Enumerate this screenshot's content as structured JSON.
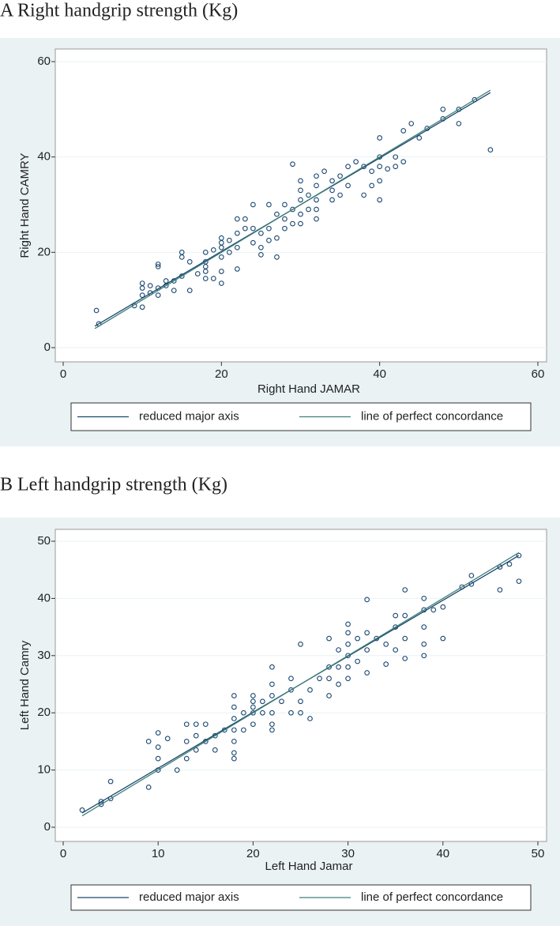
{
  "chart_data": [
    {
      "type": "scatter",
      "title": "A Right handgrip strength (Kg)",
      "xlabel": "Right Hand JAMAR",
      "ylabel": "Right Hand CAMRY",
      "xlim": [
        0,
        60
      ],
      "ylim": [
        0,
        60
      ],
      "xticks": [
        0,
        20,
        40,
        60
      ],
      "yticks": [
        0,
        20,
        40,
        60
      ],
      "grid": true,
      "points": {
        "color": "#1a476f",
        "x": [
          4.2,
          4.5,
          9,
          10,
          10,
          10,
          10,
          11,
          11,
          12,
          12,
          12,
          12,
          13,
          13,
          14,
          14,
          15,
          15,
          15,
          16,
          16,
          17,
          18,
          18,
          18,
          18,
          18,
          19,
          19,
          20,
          20,
          20,
          20,
          20,
          20,
          21,
          21,
          22,
          22,
          22,
          22,
          23,
          23,
          24,
          24,
          24,
          25,
          25,
          25,
          26,
          26,
          26,
          27,
          27,
          27,
          28,
          28,
          28,
          29,
          29,
          29,
          30,
          30,
          30,
          30,
          30,
          31,
          31,
          32,
          32,
          32,
          32,
          32,
          33,
          34,
          34,
          34,
          35,
          35,
          36,
          36,
          37,
          38,
          38,
          39,
          39,
          40,
          40,
          40,
          40,
          40,
          41,
          42,
          42,
          43,
          43,
          44,
          45,
          46,
          48,
          48,
          50,
          50,
          52,
          54
        ],
        "y": [
          7.8,
          5,
          8.8,
          8.5,
          11,
          12.5,
          13.5,
          13,
          11.5,
          11,
          12.5,
          17,
          17.5,
          13,
          14,
          12,
          14,
          15,
          19,
          20,
          18,
          12,
          15.5,
          14.5,
          16,
          17,
          18,
          20,
          20.5,
          14.5,
          13.5,
          16,
          19,
          21,
          22,
          23,
          22.5,
          20,
          16.5,
          21,
          24,
          27,
          25,
          27,
          22,
          25,
          30,
          19.5,
          21,
          24,
          22.5,
          25,
          30,
          19,
          23,
          28,
          25,
          27,
          30,
          26,
          29,
          38.5,
          26,
          28,
          31,
          33,
          35,
          29,
          32,
          27,
          29,
          31,
          34,
          36,
          37,
          31,
          33,
          35,
          32,
          36,
          34,
          38,
          39,
          32,
          38,
          34,
          37,
          31,
          35,
          38,
          40,
          44,
          37.5,
          38,
          40,
          39,
          45.5,
          47,
          44,
          46,
          48,
          50,
          47,
          50,
          52,
          41.5
        ]
      },
      "series": [
        {
          "name": "reduced major axis",
          "color": "#1a476f",
          "x": [
            4,
            54
          ],
          "y": [
            4.5,
            53.5
          ]
        },
        {
          "name": "line of perfect concordance",
          "color": "#3f7f7a",
          "x": [
            4,
            54
          ],
          "y": [
            4,
            54
          ]
        }
      ]
    },
    {
      "type": "scatter",
      "title": "B Left handgrip strength (Kg)",
      "xlabel": "Left Hand Jamar",
      "ylabel": "Left Hand Camry",
      "xlim": [
        0,
        50
      ],
      "ylim": [
        0,
        50
      ],
      "xticks": [
        0,
        10,
        20,
        30,
        40,
        50
      ],
      "yticks": [
        0,
        10,
        20,
        30,
        40,
        50
      ],
      "grid": true,
      "points": {
        "color": "#1a476f",
        "x": [
          2,
          4,
          4,
          5,
          5,
          9,
          9,
          10,
          10,
          10,
          10,
          11,
          12,
          13,
          13,
          13,
          14,
          14,
          14,
          15,
          15,
          16,
          16,
          17,
          18,
          18,
          18,
          18,
          18,
          18,
          18,
          19,
          19,
          20,
          20,
          20,
          20,
          20,
          21,
          21,
          22,
          22,
          22,
          22,
          22,
          22,
          23,
          24,
          24,
          24,
          25,
          25,
          25,
          26,
          26,
          27,
          28,
          28,
          28,
          28,
          29,
          29,
          29,
          30,
          30,
          30,
          30,
          30,
          30,
          31,
          31,
          32,
          32,
          32,
          32,
          33,
          34,
          34,
          35,
          35,
          35,
          36,
          36,
          36,
          36,
          38,
          38,
          38,
          38,
          38,
          39,
          40,
          40,
          42,
          43,
          43,
          46,
          46,
          47,
          48,
          48
        ],
        "y": [
          3,
          4,
          4.5,
          5,
          8,
          7,
          15,
          10,
          12,
          14,
          16.5,
          15.5,
          10,
          12,
          15,
          18,
          13.5,
          16,
          18,
          15,
          18,
          13.5,
          16,
          17,
          12,
          13,
          15,
          17,
          19,
          21,
          23,
          17,
          20,
          18,
          20,
          21,
          22,
          23,
          20,
          22,
          17,
          18,
          20,
          23,
          25,
          28,
          22,
          20,
          24,
          26,
          20,
          22,
          32,
          19,
          24,
          26,
          23,
          26,
          28,
          33,
          25,
          28,
          31,
          26,
          28,
          30,
          32,
          34,
          35.5,
          29,
          33,
          27,
          31,
          34,
          39.8,
          33,
          28.5,
          32,
          31,
          35,
          37,
          29.5,
          33,
          37,
          41.5,
          30,
          32,
          35,
          38,
          40,
          38,
          33,
          38.5,
          42,
          42.5,
          44,
          41.5,
          45.5,
          46,
          43,
          47.5
        ]
      },
      "series": [
        {
          "name": "reduced major axis",
          "color": "#1a476f",
          "x": [
            2,
            48
          ],
          "y": [
            2.5,
            47.5
          ]
        },
        {
          "name": "line of perfect concordance",
          "color": "#3f7f7a",
          "x": [
            2,
            48
          ],
          "y": [
            2,
            48
          ]
        }
      ]
    }
  ]
}
